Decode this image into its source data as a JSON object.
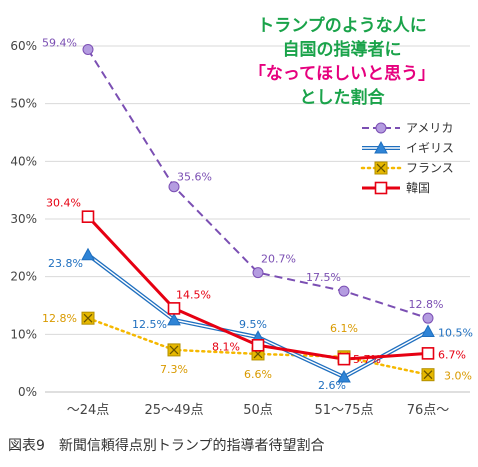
{
  "chart_data": {
    "type": "line",
    "title_lines": [
      {
        "text": "トランプのような人に",
        "color": "#1aa34a"
      },
      {
        "text": "自国の指導者に",
        "color": "#1aa34a"
      },
      {
        "text": "「なってほしいと思う」",
        "color": "#e6007e"
      },
      {
        "text": "とした割合",
        "color": "#1aa34a"
      }
    ],
    "categories": [
      "～24点",
      "25～49点",
      "50点",
      "51～75点",
      "76点～"
    ],
    "y_ticks": [
      "0%",
      "10%",
      "20%",
      "30%",
      "40%",
      "50%",
      "60%"
    ],
    "ylim": [
      0,
      60
    ],
    "grid": true,
    "legend_position": "top-right",
    "series": [
      {
        "name": "アメリカ",
        "values": [
          59.4,
          35.6,
          20.7,
          17.5,
          12.8
        ],
        "labels": [
          "59.4%",
          "35.6%",
          "20.7%",
          "17.5%",
          "12.8%"
        ],
        "color": "#7b4fb3",
        "marker": "circle",
        "style": "dashed"
      },
      {
        "name": "イギリス",
        "values": [
          23.8,
          12.5,
          9.5,
          2.6,
          10.5
        ],
        "labels": [
          "23.8%",
          "12.5%",
          "9.5%",
          "2.6%",
          "10.5%"
        ],
        "color": "#1f6fbf",
        "marker": "triangle",
        "style": "double"
      },
      {
        "name": "フランス",
        "values": [
          12.8,
          7.3,
          6.6,
          6.1,
          3.0
        ],
        "labels": [
          "12.8%",
          "7.3%",
          "6.6%",
          "6.1%",
          "3.0%"
        ],
        "color": "#f5b800",
        "marker": "xsquare",
        "style": "dotted"
      },
      {
        "name": "韓国",
        "values": [
          30.4,
          14.5,
          8.1,
          5.7,
          6.7
        ],
        "labels": [
          "30.4%",
          "14.5%",
          "8.1%",
          "5.7%",
          "6.7%"
        ],
        "color": "#e60012",
        "marker": "square",
        "style": "solid"
      }
    ]
  },
  "caption": "図表9　新聞信頼得点別トランプ的指導者待望割合"
}
